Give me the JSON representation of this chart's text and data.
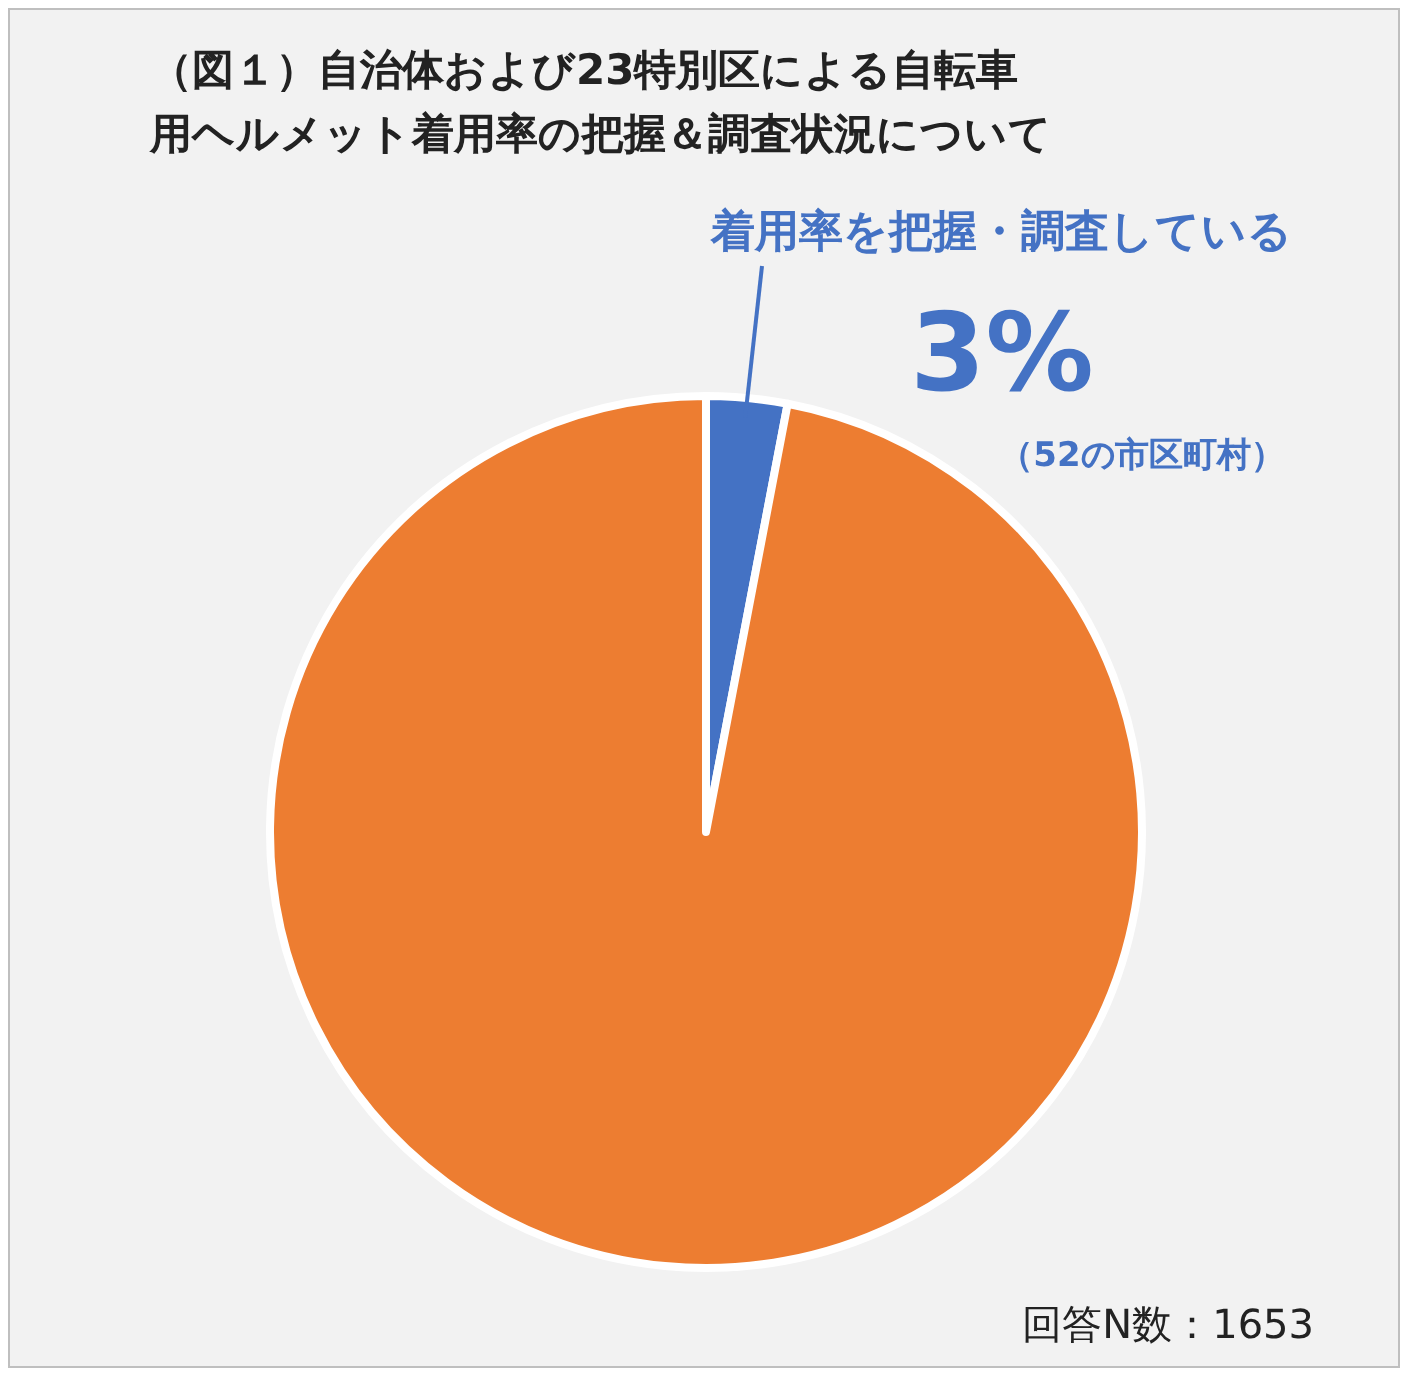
{
  "chart_data": {
    "type": "pie",
    "title": "（図１）自治体および23特別区による自転車用ヘルメット着用率の把握＆調査状況について",
    "categories": [
      "着用率を把握・調査している",
      null
    ],
    "values": [
      3,
      97
    ],
    "colors": [
      "#4472c4",
      "#ed7d31"
    ],
    "value_labels": [
      "3%",
      null
    ],
    "annotations": [
      "（52の市区町村）",
      "回答N数：1653"
    ]
  }
}
